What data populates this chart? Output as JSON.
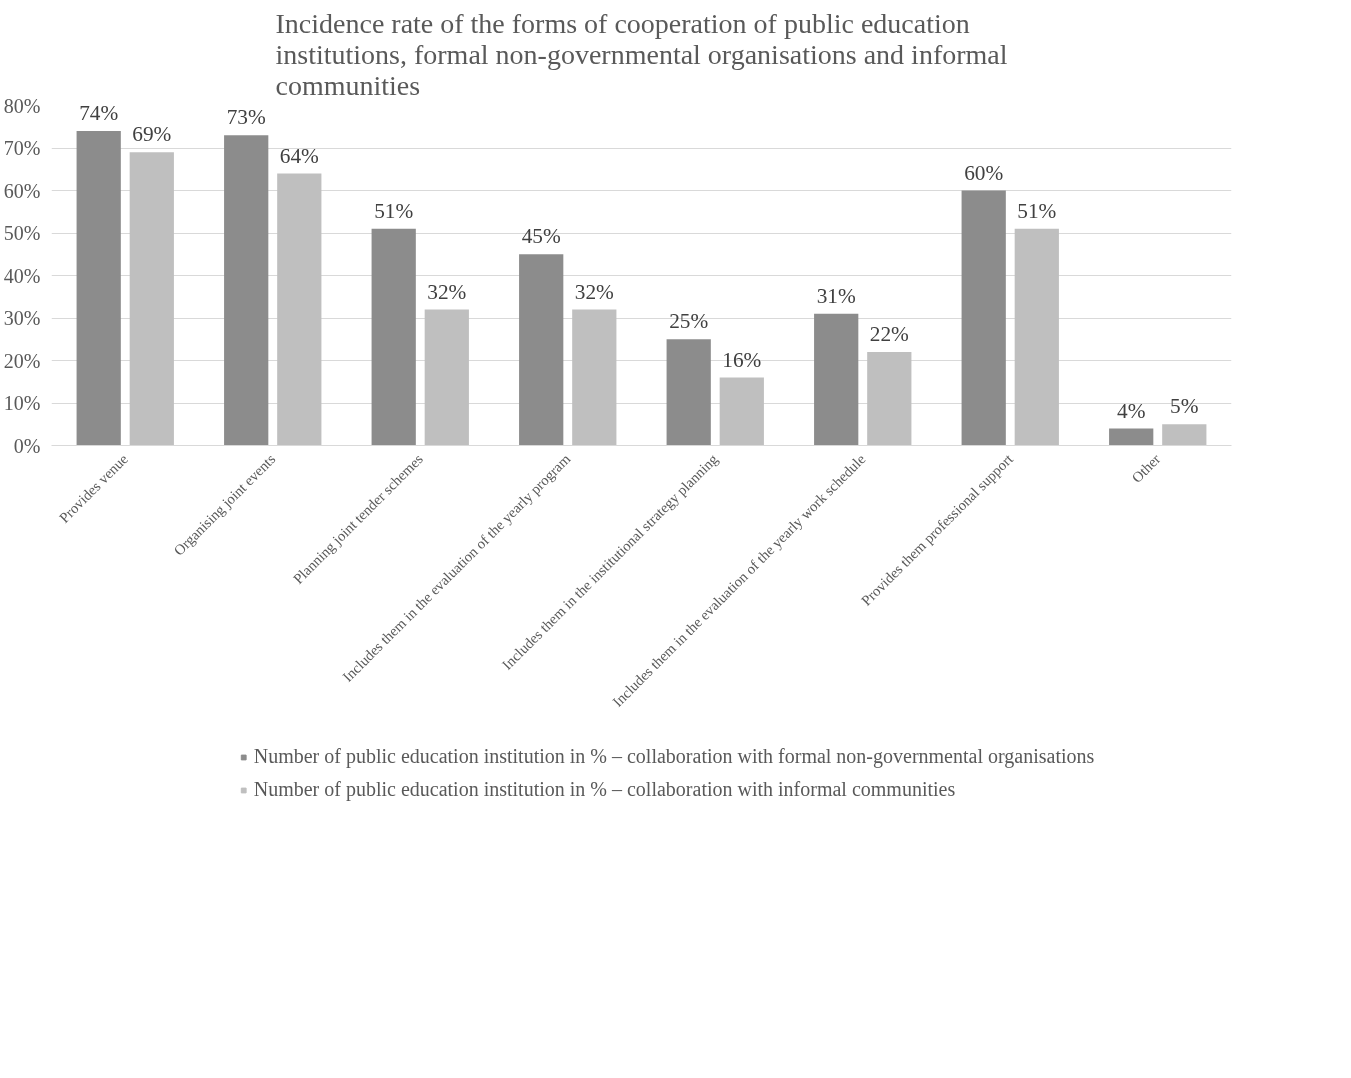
{
  "chart_data": {
    "type": "bar",
    "title": "Incidence rate of the forms of cooperation of public education institutions, formal non-governmental organisations and informal communities",
    "categories": [
      "Provides venue",
      "Organising joint events",
      "Planning joint tender schemes",
      "Includes them in the evaluation of the yearly program",
      "Includes them in the institutional strategy planning",
      "Includes them in the evaluation of the yearly work schedule",
      "Provides them professional support",
      "Other"
    ],
    "series": [
      {
        "name": "Number of public education institution in % – collaboration with formal non-governmental organisations",
        "color": "#8c8c8c",
        "values": [
          74,
          73,
          51,
          45,
          25,
          31,
          60,
          4
        ],
        "value_labels": [
          "74%",
          "73%",
          "51%",
          "45%",
          "25%",
          "31%",
          "60%",
          "4%"
        ]
      },
      {
        "name": "Number of public education institution in % – collaboration with informal communities",
        "color": "#bfbfbf",
        "values": [
          69,
          64,
          32,
          32,
          16,
          22,
          51,
          5
        ],
        "value_labels": [
          "69%",
          "64%",
          "32%",
          "32%",
          "16%",
          "22%",
          "51%",
          "5%"
        ]
      }
    ],
    "ylim": [
      0,
      80
    ],
    "yticks": [
      {
        "value": 0,
        "label": "0%"
      },
      {
        "value": 10,
        "label": "10%"
      },
      {
        "value": 20,
        "label": "20%"
      },
      {
        "value": 30,
        "label": "30%"
      },
      {
        "value": 40,
        "label": "40%"
      },
      {
        "value": 50,
        "label": "50%"
      },
      {
        "value": 60,
        "label": "60%"
      },
      {
        "value": 70,
        "label": "70%"
      },
      {
        "value": 80,
        "label": "80%"
      }
    ],
    "grid": "y",
    "legend": "bottom"
  }
}
